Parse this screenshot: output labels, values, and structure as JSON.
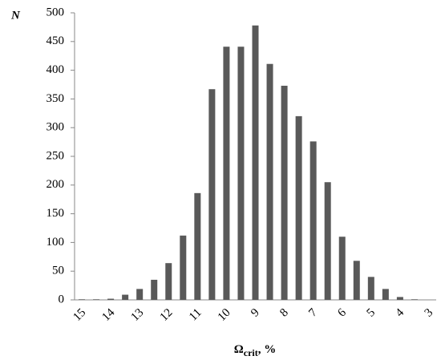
{
  "chart_data": {
    "type": "bar",
    "y_label": "N",
    "x_label": {
      "symbol": "Ω",
      "subscript": "crit",
      "suffix": ", %"
    },
    "categories": [
      "15",
      null,
      "14",
      null,
      "13",
      null,
      "12",
      null,
      "11",
      null,
      "10",
      null,
      "9",
      null,
      "8",
      null,
      "7",
      null,
      "6",
      null,
      "5",
      null,
      "4",
      null,
      "3"
    ],
    "values": [
      1,
      1,
      2,
      9,
      19,
      35,
      64,
      112,
      186,
      367,
      441,
      441,
      478,
      411,
      373,
      320,
      276,
      205,
      110,
      68,
      40,
      19,
      5,
      1,
      0
    ],
    "color": "#595959",
    "ylim": [
      0,
      500
    ],
    "yticks": [
      0,
      50,
      100,
      150,
      200,
      250,
      300,
      350,
      400,
      450,
      500
    ],
    "grid": false
  }
}
